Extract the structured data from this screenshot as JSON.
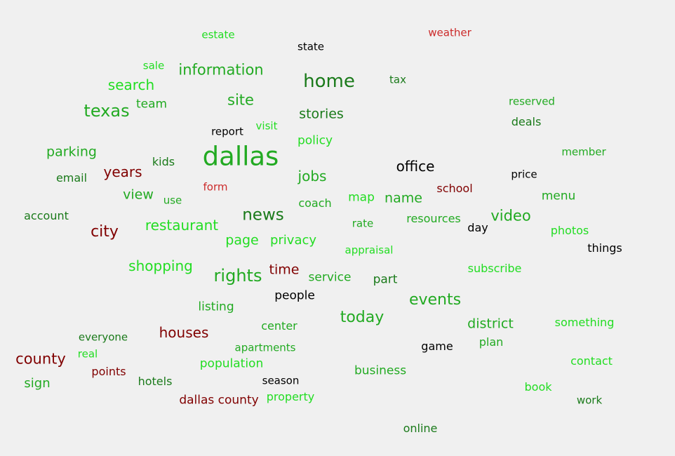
{
  "words": [
    {
      "text": "estate",
      "color": "lg"
    },
    {
      "text": "state",
      "color": "bk"
    },
    {
      "text": "weather",
      "color": "rd"
    },
    {
      "text": "sale",
      "color": "lg"
    },
    {
      "text": "information",
      "color": "g"
    },
    {
      "text": "home",
      "color": "dg"
    },
    {
      "text": "tax",
      "color": "dg"
    },
    {
      "text": "search",
      "color": "lg"
    },
    {
      "text": "reserved",
      "color": "g"
    },
    {
      "text": "texas",
      "color": "g"
    },
    {
      "text": "team",
      "color": "g"
    },
    {
      "text": "site",
      "color": "g"
    },
    {
      "text": "stories",
      "color": "dg"
    },
    {
      "text": "deals",
      "color": "dg"
    },
    {
      "text": "report",
      "color": "bk"
    },
    {
      "text": "visit",
      "color": "lg"
    },
    {
      "text": "policy",
      "color": "lg"
    },
    {
      "text": "parking",
      "color": "g"
    },
    {
      "text": "dallas",
      "color": "g"
    },
    {
      "text": "member",
      "color": "g"
    },
    {
      "text": "kids",
      "color": "dg"
    },
    {
      "text": "years",
      "color": "br"
    },
    {
      "text": "office",
      "color": "bk"
    },
    {
      "text": "email",
      "color": "dg"
    },
    {
      "text": "jobs",
      "color": "g"
    },
    {
      "text": "price",
      "color": "bk"
    },
    {
      "text": "form",
      "color": "rd"
    },
    {
      "text": "school",
      "color": "br"
    },
    {
      "text": "view",
      "color": "g"
    },
    {
      "text": "use",
      "color": "g"
    },
    {
      "text": "map",
      "color": "lg"
    },
    {
      "text": "name",
      "color": "g"
    },
    {
      "text": "menu",
      "color": "g"
    },
    {
      "text": "coach",
      "color": "g"
    },
    {
      "text": "account",
      "color": "dg"
    },
    {
      "text": "news",
      "color": "dg"
    },
    {
      "text": "video",
      "color": "g"
    },
    {
      "text": "resources",
      "color": "g"
    },
    {
      "text": "city",
      "color": "br"
    },
    {
      "text": "restaurant",
      "color": "lg"
    },
    {
      "text": "rate",
      "color": "g"
    },
    {
      "text": "day",
      "color": "bk"
    },
    {
      "text": "photos",
      "color": "lg"
    },
    {
      "text": "page",
      "color": "lg"
    },
    {
      "text": "privacy",
      "color": "lg"
    },
    {
      "text": "things",
      "color": "bk"
    },
    {
      "text": "appraisal",
      "color": "lg"
    },
    {
      "text": "shopping",
      "color": "lg"
    },
    {
      "text": "time",
      "color": "br"
    },
    {
      "text": "subscribe",
      "color": "lg"
    },
    {
      "text": "rights",
      "color": "g"
    },
    {
      "text": "service",
      "color": "g"
    },
    {
      "text": "part",
      "color": "dg"
    },
    {
      "text": "people",
      "color": "bk"
    },
    {
      "text": "events",
      "color": "g"
    },
    {
      "text": "listing",
      "color": "g"
    },
    {
      "text": "today",
      "color": "g"
    },
    {
      "text": "district",
      "color": "g"
    },
    {
      "text": "something",
      "color": "lg"
    },
    {
      "text": "everyone",
      "color": "dg"
    },
    {
      "text": "houses",
      "color": "br"
    },
    {
      "text": "center",
      "color": "g"
    },
    {
      "text": "real",
      "color": "lg"
    },
    {
      "text": "apartments",
      "color": "g"
    },
    {
      "text": "game",
      "color": "bk"
    },
    {
      "text": "plan",
      "color": "g"
    },
    {
      "text": "county",
      "color": "br"
    },
    {
      "text": "population",
      "color": "lg"
    },
    {
      "text": "contact",
      "color": "lg"
    },
    {
      "text": "points",
      "color": "br"
    },
    {
      "text": "business",
      "color": "g"
    },
    {
      "text": "sign",
      "color": "g"
    },
    {
      "text": "hotels",
      "color": "dg"
    },
    {
      "text": "season",
      "color": "bk"
    },
    {
      "text": "book",
      "color": "lg"
    },
    {
      "text": "dallas county",
      "color": "br"
    },
    {
      "text": "property",
      "color": "lg"
    },
    {
      "text": "work",
      "color": "dg"
    },
    {
      "text": "online",
      "color": "dg"
    }
  ]
}
